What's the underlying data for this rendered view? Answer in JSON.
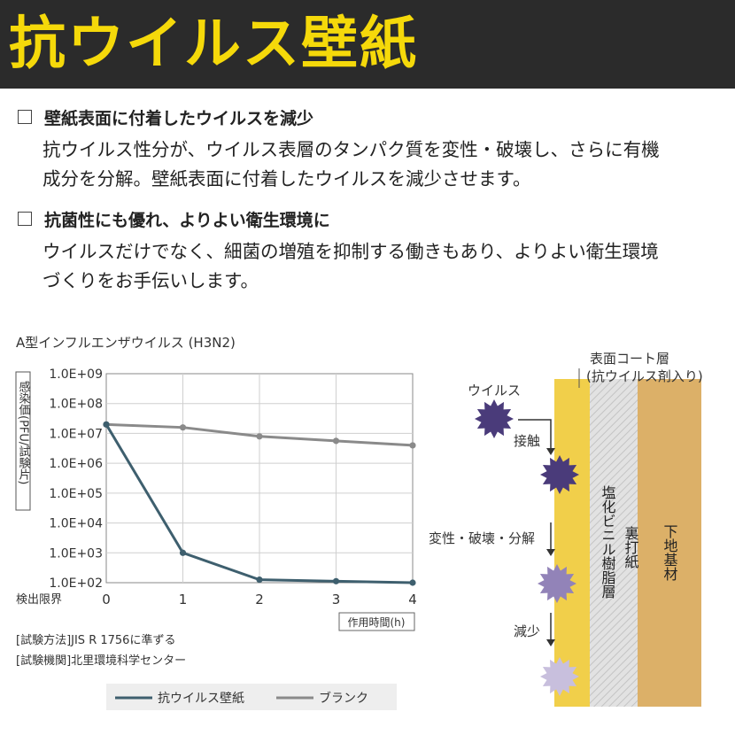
{
  "header": {
    "title": "抗ウイルス壁紙"
  },
  "sections": [
    {
      "heading": "壁紙表面に付着したウイルスを減少",
      "lines": [
        "抗ウイルス性分が、ウイルス表層のタンパク質を変性・破壊し、さらに有機",
        "成分を分解。壁紙表面に付着したウイルスを減少させます。"
      ]
    },
    {
      "heading": "抗菌性にも優れ、よりよい衛生環境に",
      "lines": [
        "ウイルスだけでなく、細菌の増殖を抑制する働きもあり、よりよい衛生環境",
        "づくりをお手伝いします。"
      ]
    }
  ],
  "chart_data": {
    "type": "line",
    "title": "A型インフルエンザウイルス (H3N2)",
    "ylabel": "感染価(PFU/試験片)",
    "xlabel": "作用時間(h)",
    "ytick_labels": [
      "1.0E+09",
      "1.0E+08",
      "1.0E+07",
      "1.0E+06",
      "1.0E+05",
      "1.0E+04",
      "1.0E+03",
      "1.0E+02"
    ],
    "y_bottom_label": "検出限界",
    "x": [
      0,
      1,
      2,
      3,
      4
    ],
    "xlim": [
      0,
      4
    ],
    "ylim_log10": [
      2,
      9
    ],
    "log_scale_y": true,
    "grid": true,
    "legend_position": "bottom",
    "series": [
      {
        "name": "抗ウイルス壁紙",
        "color": "#3e5f6e",
        "log10_values": [
          7.3,
          3.0,
          2.1,
          2.05,
          2.0
        ]
      },
      {
        "name": "ブランク",
        "color": "#8a8a8a",
        "log10_values": [
          7.3,
          7.2,
          6.9,
          6.75,
          6.6
        ]
      }
    ],
    "notes": [
      "[試験方法]JIS R 1756に準ずる",
      "[試験機関]北里環境科学センター"
    ]
  },
  "diagram": {
    "coat_label_1": "表面コート層",
    "coat_label_2": "(抗ウイルス剤入り)",
    "virus_label": "ウイルス",
    "step1": "接触",
    "step2": "変性・破壊・分解",
    "step3": "減少",
    "layer_vinyl": "塩化ビニル樹脂層",
    "layer_backing": "裏打紙",
    "layer_base": "下地基材",
    "colors": {
      "coat": "#f1cf4a",
      "vinyl": "#dedede",
      "base": "#dcb068",
      "virus_dark": "#4a3b7a",
      "virus_mid": "#9283b8",
      "virus_light": "#c8bfdd"
    }
  }
}
